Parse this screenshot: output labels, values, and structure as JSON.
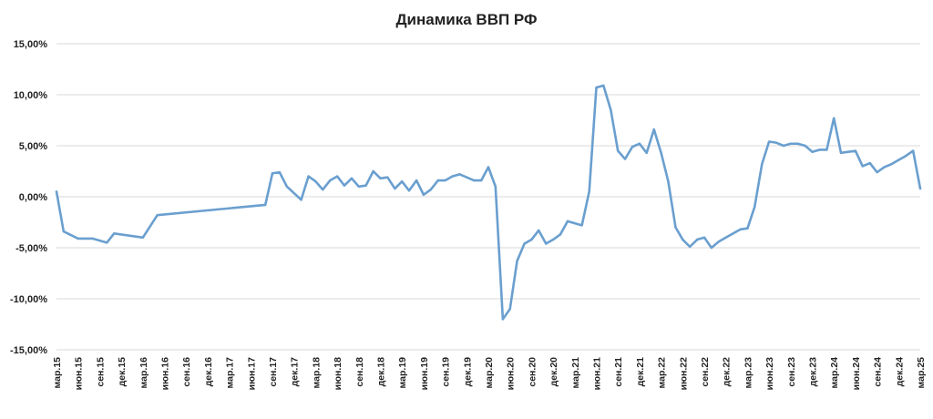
{
  "chart_data": {
    "type": "line",
    "title": "Динамика ВВП РФ",
    "xlabel": "",
    "ylabel": "",
    "ylim": [
      -15,
      15
    ],
    "yticks": [
      15,
      10,
      5,
      0,
      -5,
      -10,
      -15
    ],
    "ytick_labels": [
      "15,00%",
      "10,00%",
      "5,00%",
      "0,00%",
      "-5,00%",
      "-10,00%",
      "-15,00%"
    ],
    "grid": true,
    "legend": "none",
    "line_color": "#6a9fcf",
    "x_categories": [
      "мар.15",
      "июн.15",
      "сен.15",
      "дек.15",
      "мар.16",
      "июн.16",
      "сен.16",
      "дек.16",
      "мар.17",
      "июн.17",
      "сен.17",
      "дек.17",
      "мар.18",
      "июн.18",
      "сен.18",
      "дек.18",
      "мар.19",
      "июн.19",
      "сен.19",
      "дек.19",
      "мар.20",
      "июн.20",
      "сен.20",
      "дек.20",
      "мар.21",
      "июн.21",
      "сен.21",
      "дек.21",
      "мар.22",
      "июн.22",
      "сен.22",
      "дек.22",
      "мар.23",
      "июн.23",
      "сен.23",
      "дек.23",
      "мар.24",
      "июн.24",
      "сен.24",
      "дек.24",
      "мар.25"
    ],
    "series": [
      {
        "x": [
          0,
          0.33,
          1,
          1.67,
          2.33,
          2.67,
          4,
          4.67,
          9.67,
          10,
          10.33,
          10.67,
          11.33,
          11.67,
          12,
          12.33,
          12.67,
          13,
          13.33,
          13.67,
          14,
          14.33,
          14.67,
          15,
          15.33,
          15.67,
          16,
          16.33,
          16.67,
          17,
          17.33,
          17.67,
          18,
          18.33,
          18.67,
          19,
          19.33,
          19.67,
          20,
          20.33,
          20.67,
          21,
          21.33,
          21.67,
          22,
          22.33,
          22.67,
          23,
          23.33,
          23.67,
          24,
          24.33,
          24.67,
          25,
          25.33,
          25.67,
          26,
          26.33,
          26.67,
          27,
          27.33,
          27.67,
          28,
          28.33,
          28.67,
          29,
          29.33,
          29.67,
          30,
          30.33,
          30.67,
          31,
          31.33,
          31.67,
          32,
          32.33,
          32.67,
          33,
          33.33,
          33.67,
          34,
          34.33,
          34.67,
          35,
          35.33,
          35.67,
          36,
          36.33,
          36.67,
          37,
          37.33,
          37.67,
          38,
          38.33,
          38.67,
          39,
          39.33,
          39.67,
          40
        ],
        "values": [
          0.5,
          -3.4,
          -4.1,
          -4.1,
          -4.5,
          -3.6,
          -4.0,
          -1.8,
          -0.8,
          2.3,
          2.4,
          1.0,
          -0.3,
          2.0,
          1.5,
          0.7,
          1.6,
          2.0,
          1.1,
          1.8,
          1.0,
          1.1,
          2.5,
          1.8,
          1.9,
          0.8,
          1.5,
          0.6,
          1.6,
          0.2,
          0.7,
          1.6,
          1.6,
          2.0,
          2.2,
          1.9,
          1.6,
          1.6,
          2.9,
          1.0,
          -12.0,
          -11.0,
          -6.3,
          -4.6,
          -4.2,
          -3.3,
          -4.6,
          -4.2,
          -3.7,
          -2.4,
          -2.6,
          -2.8,
          0.5,
          10.7,
          10.9,
          8.5,
          4.5,
          3.7,
          4.9,
          5.2,
          4.3,
          6.6,
          4.3,
          1.5,
          -3.0,
          -4.2,
          -4.9,
          -4.2,
          -4.0,
          -5.0,
          -4.4,
          -4.0,
          -3.6,
          -3.2,
          -3.1,
          -1.0,
          3.2,
          5.4,
          5.3,
          5.0,
          5.2,
          5.2,
          5.0,
          4.4,
          4.6,
          4.6,
          7.7,
          4.3,
          4.4,
          4.5,
          3.0,
          3.3,
          2.4,
          2.9,
          3.2,
          3.6,
          4.0,
          4.5,
          0.8
        ]
      }
    ]
  }
}
